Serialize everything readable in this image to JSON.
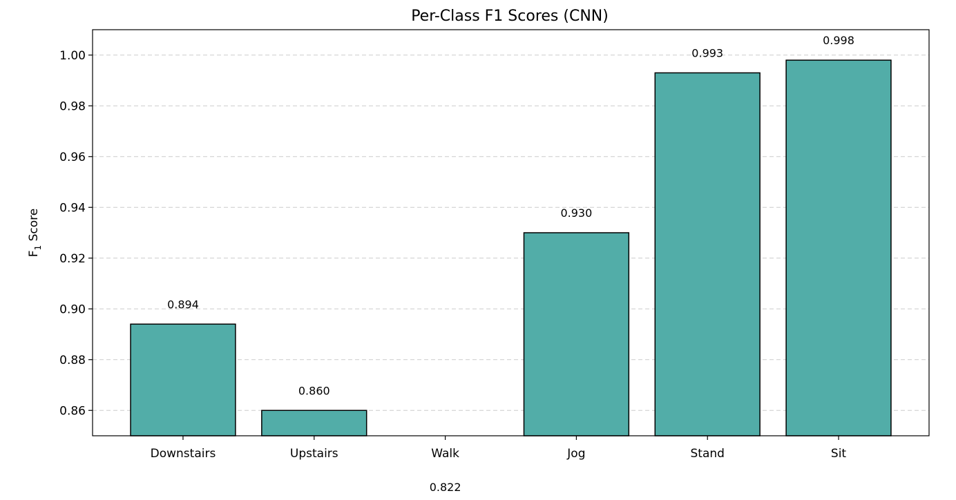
{
  "chart_data": {
    "type": "bar",
    "title": "Per-Class F1 Scores (CNN)",
    "ylabel_main": "F",
    "ylabel_sub": "1",
    "ylabel_rest": " Score",
    "categories": [
      "Downstairs",
      "Upstairs",
      "Walk",
      "Jog",
      "Stand",
      "Sit"
    ],
    "values": [
      0.894,
      0.86,
      0.822,
      0.93,
      0.993,
      0.998
    ],
    "value_labels": [
      "0.894",
      "0.860",
      "0.822",
      "0.930",
      "0.993",
      "0.998"
    ],
    "ylim": [
      0.85,
      1.01
    ],
    "yticks": [
      0.86,
      0.88,
      0.9,
      0.92,
      0.94,
      0.96,
      0.98,
      1.0
    ],
    "ytick_labels": [
      "0.86",
      "0.88",
      "0.90",
      "0.92",
      "0.94",
      "0.96",
      "0.98",
      "1.00"
    ],
    "grid": "y-dashed",
    "bar_color": "#52ada8"
  }
}
